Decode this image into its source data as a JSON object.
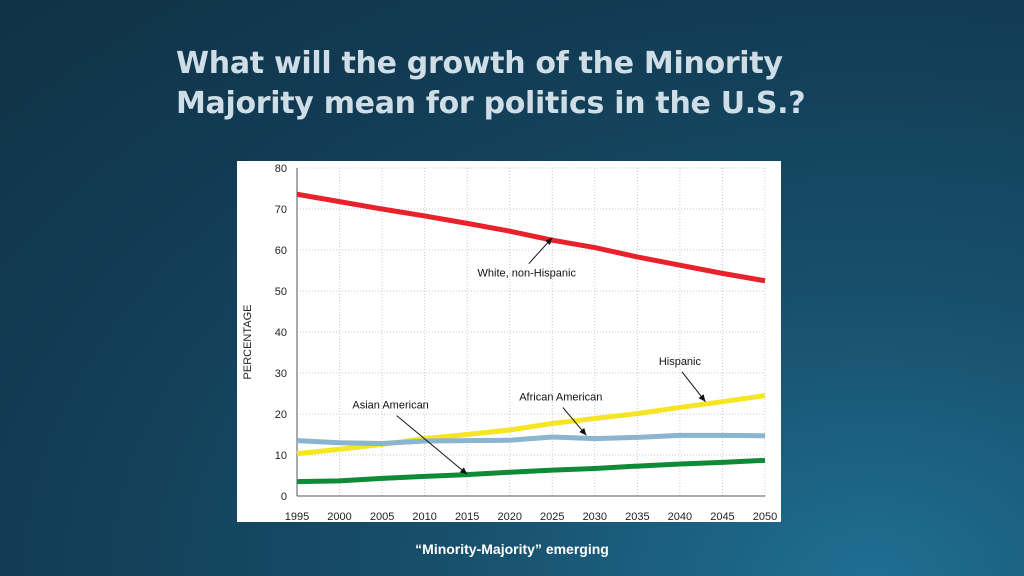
{
  "slide": {
    "title_line1": "What will the growth of the Minority",
    "title_line2": "Majority mean for politics in the U.S.?",
    "caption": "“Minority-Majority” emerging",
    "background_color": "#174f6b"
  },
  "chart_data": {
    "type": "line",
    "title": "",
    "xlabel": "",
    "ylabel": "PERCENTAGE",
    "x": [
      1995,
      2000,
      2005,
      2010,
      2015,
      2020,
      2025,
      2030,
      2035,
      2040,
      2045,
      2050
    ],
    "x_ticks": [
      "1995",
      "2000",
      "2005",
      "2010",
      "2015",
      "2020",
      "2025",
      "2030",
      "2035",
      "2040",
      "2045",
      "2050"
    ],
    "y_ticks": [
      "0",
      "10",
      "20",
      "30",
      "40",
      "50",
      "60",
      "70",
      "80"
    ],
    "ylim": [
      0,
      80
    ],
    "grid": true,
    "series": [
      {
        "name": "White, non-Hispanic",
        "color": "#e8212b",
        "values": [
          73.6,
          71.8,
          70.0,
          68.3,
          66.5,
          64.6,
          62.4,
          60.6,
          58.3,
          56.3,
          54.3,
          52.5
        ]
      },
      {
        "name": "Hispanic",
        "color": "#f5e524",
        "values": [
          10.3,
          11.4,
          12.6,
          14.0,
          15.0,
          16.1,
          17.7,
          18.9,
          20.1,
          21.6,
          23.0,
          24.5
        ]
      },
      {
        "name": "African American",
        "color": "#8ab4cf",
        "values": [
          13.5,
          13.0,
          12.8,
          13.4,
          13.5,
          13.6,
          14.4,
          14.0,
          14.3,
          14.8,
          14.8,
          14.7
        ]
      },
      {
        "name": "Asian American",
        "color": "#0f8a35",
        "values": [
          3.5,
          3.7,
          4.3,
          4.8,
          5.2,
          5.8,
          6.3,
          6.7,
          7.3,
          7.8,
          8.2,
          8.7
        ]
      }
    ],
    "annotations": [
      {
        "text": "White, non-Hispanic",
        "series": "White, non-Hispanic",
        "point_x": 2025,
        "point_y": 63.0,
        "text_x": 2022,
        "text_y": 53.5
      },
      {
        "text": "Hispanic",
        "series": "Hispanic",
        "point_x": 2043,
        "point_y": 23.0,
        "text_x": 2040,
        "text_y": 32.0
      },
      {
        "text": "African American",
        "series": "African American",
        "point_x": 2029,
        "point_y": 14.8,
        "text_x": 2026,
        "text_y": 23.3
      },
      {
        "text": "Asian American",
        "series": "Asian American",
        "point_x": 2015,
        "point_y": 5.3,
        "text_x": 2006,
        "text_y": 21.3
      }
    ]
  }
}
